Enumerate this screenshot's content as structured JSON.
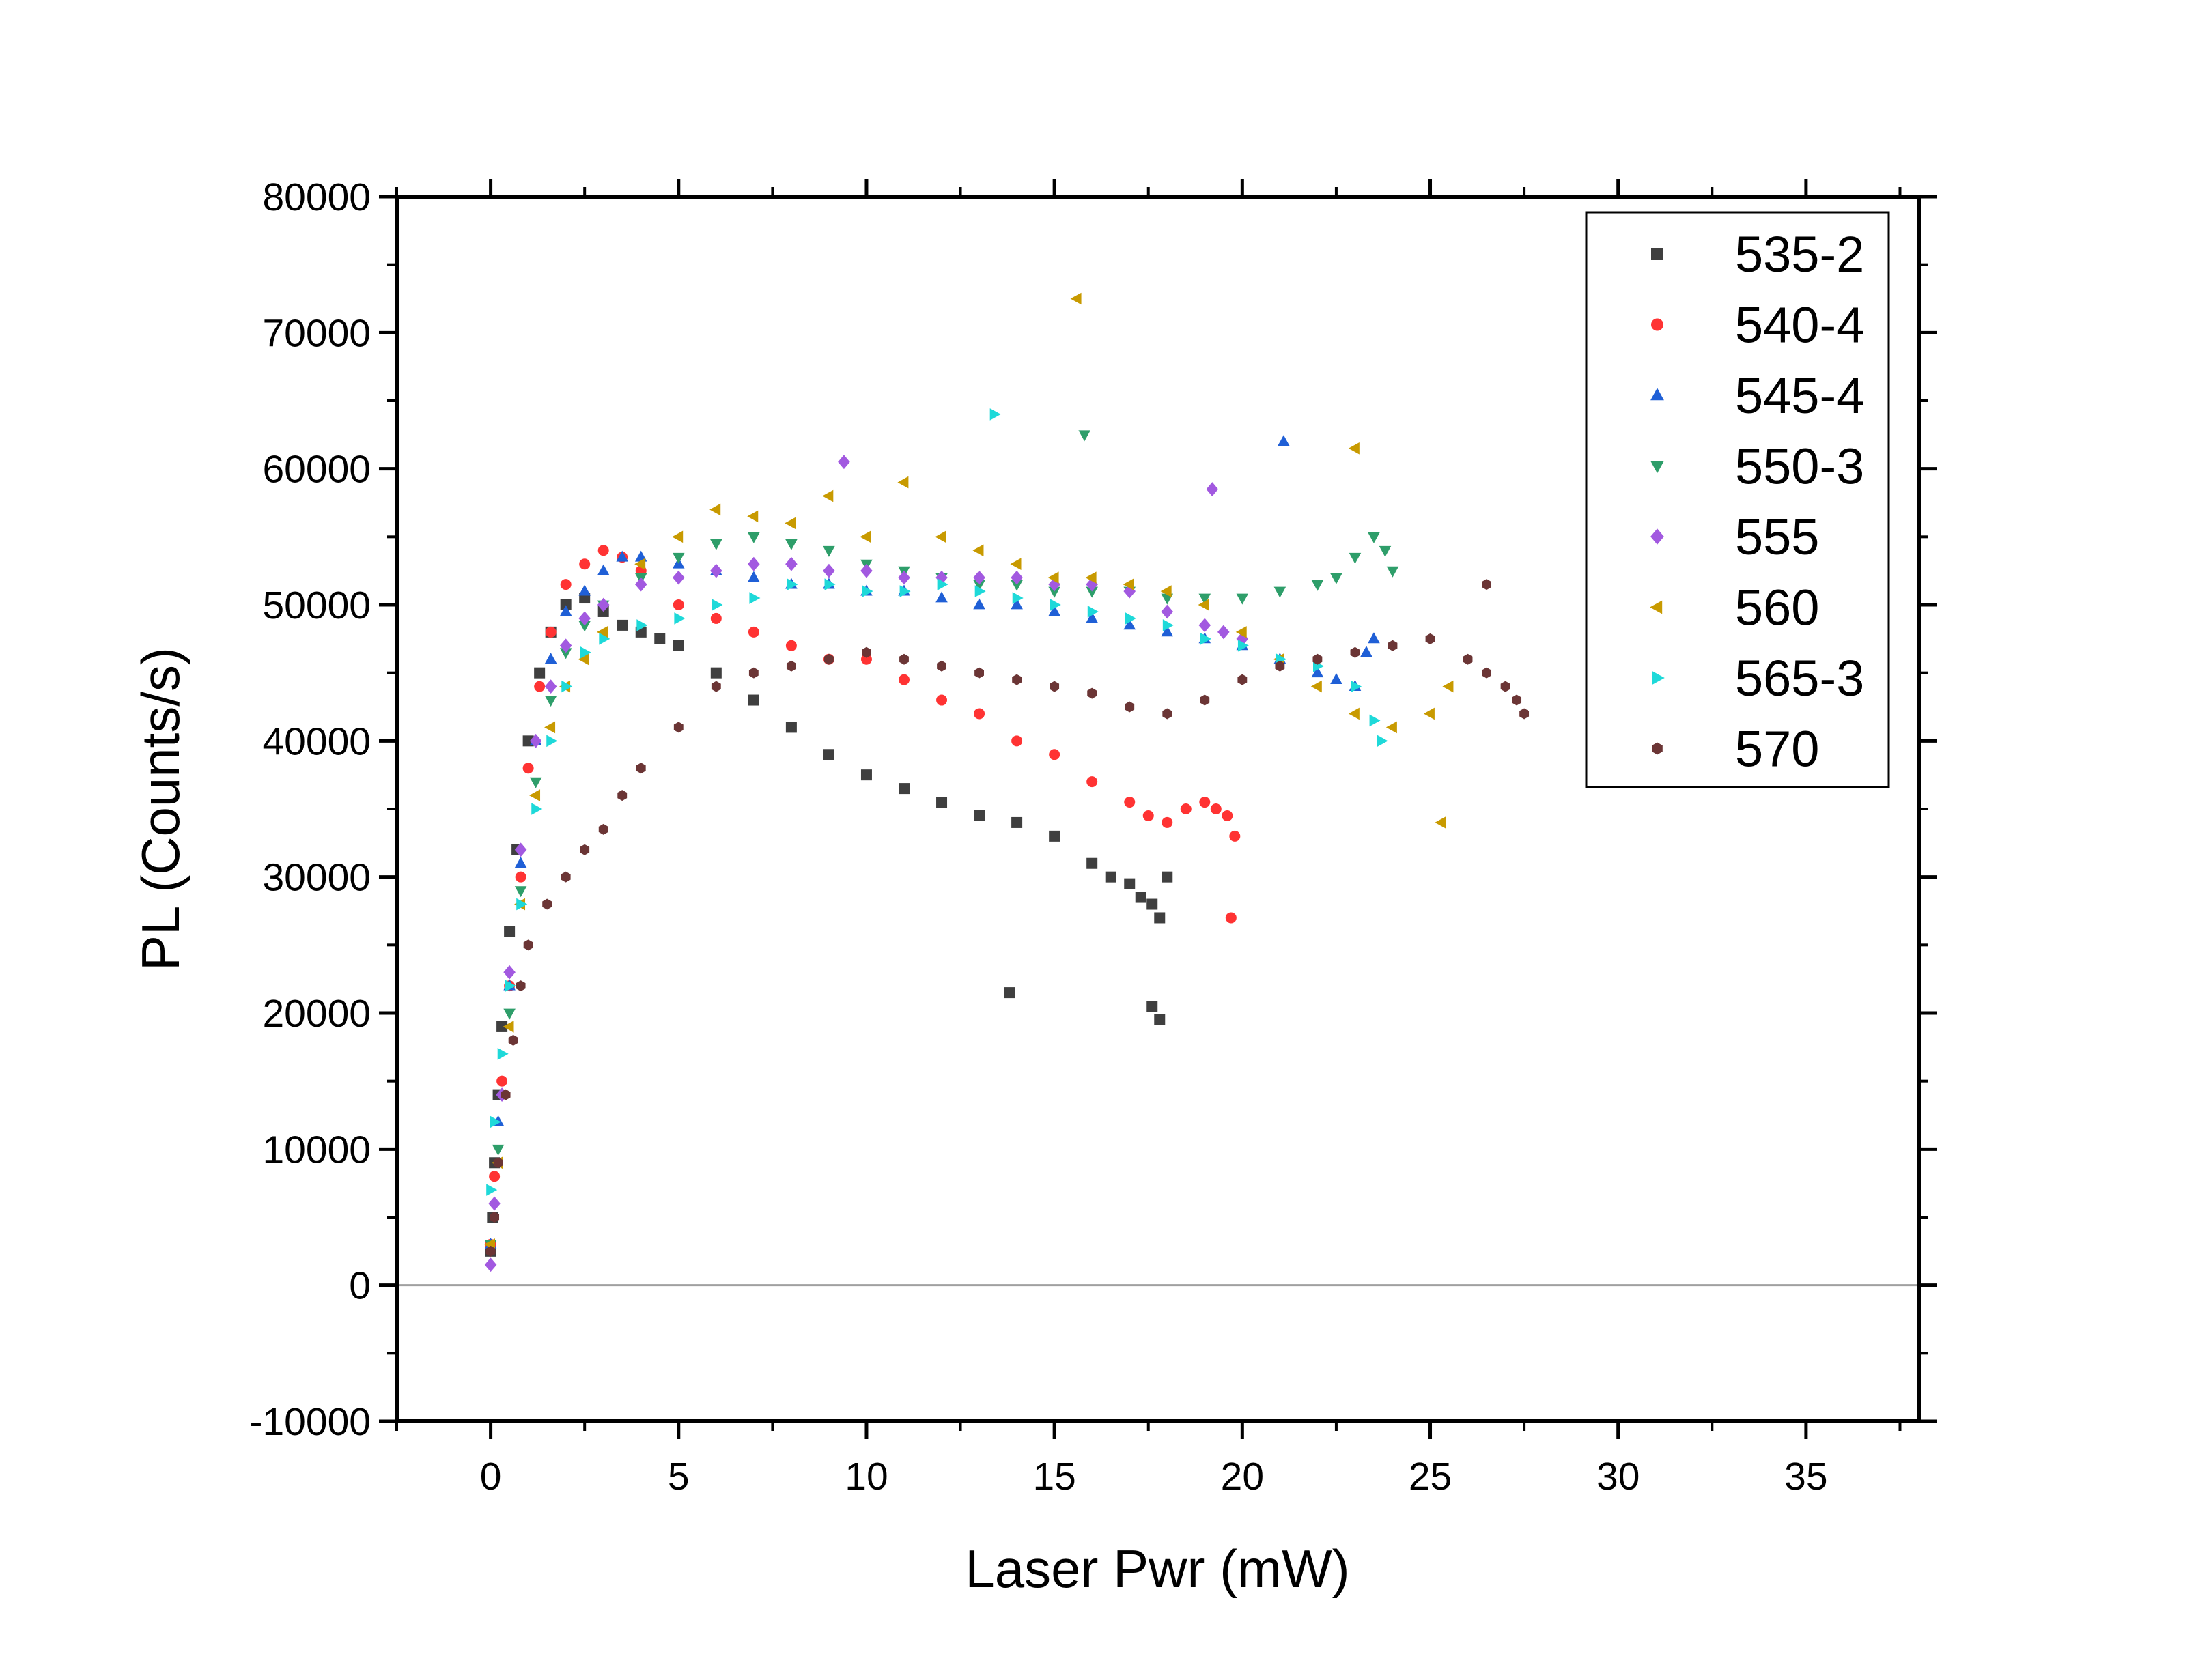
{
  "chart_data": {
    "type": "scatter",
    "title": "",
    "xlabel": "Laser Pwr (mW)",
    "ylabel": "PL (Counts/s)",
    "xlim": [
      -2.5,
      38.0
    ],
    "ylim": [
      -10000,
      80000
    ],
    "xticks": [
      0,
      5,
      10,
      15,
      20,
      25,
      30,
      35
    ],
    "xtick_labels": [
      "0",
      "5",
      "10",
      "15",
      "20",
      "25",
      "30",
      "35"
    ],
    "yticks": [
      -10000,
      0,
      10000,
      20000,
      30000,
      40000,
      50000,
      60000,
      70000,
      80000
    ],
    "ytick_labels": [
      "-10000",
      "0",
      "10000",
      "20000",
      "30000",
      "40000",
      "50000",
      "60000",
      "70000",
      "80000"
    ],
    "grid": false,
    "zero_line": true,
    "legend_position": "top-right",
    "series": [
      {
        "name": "535-2",
        "marker": "square",
        "color": "#3f3f3f",
        "x": [
          0.0,
          0.05,
          0.1,
          0.2,
          0.3,
          0.5,
          0.7,
          1.0,
          1.3,
          1.6,
          2.0,
          2.5,
          3.0,
          3.5,
          4.0,
          4.5,
          5.0,
          6.0,
          7.0,
          8.0,
          9.0,
          10.0,
          11.0,
          12.0,
          13.0,
          14.0,
          15.0,
          16.0,
          16.5,
          17.0,
          17.3,
          17.6,
          17.8,
          18.0,
          13.8,
          17.6,
          17.8
        ],
        "y": [
          2500,
          5000,
          9000,
          14000,
          19000,
          26000,
          32000,
          40000,
          45000,
          48000,
          50000,
          50500,
          49500,
          48500,
          48000,
          47500,
          47000,
          45000,
          43000,
          41000,
          39000,
          37500,
          36500,
          35500,
          34500,
          34000,
          33000,
          31000,
          30000,
          29500,
          28500,
          28000,
          27000,
          30000,
          21500,
          20500,
          19500
        ]
      },
      {
        "name": "540-4",
        "marker": "circle",
        "color": "#ff3333",
        "x": [
          0.0,
          0.1,
          0.3,
          0.5,
          0.8,
          1.0,
          1.3,
          1.6,
          2.0,
          2.5,
          3.0,
          3.5,
          4.0,
          5.0,
          6.0,
          7.0,
          8.0,
          9.0,
          10.0,
          11.0,
          12.0,
          13.0,
          14.0,
          15.0,
          16.0,
          17.0,
          17.5,
          18.0,
          18.5,
          19.0,
          19.3,
          19.6,
          19.8,
          19.7
        ],
        "y": [
          3000,
          8000,
          15000,
          22000,
          30000,
          38000,
          44000,
          48000,
          51500,
          53000,
          54000,
          53500,
          52500,
          50000,
          49000,
          48000,
          47000,
          46000,
          46000,
          44500,
          43000,
          42000,
          40000,
          39000,
          37000,
          35500,
          34500,
          34000,
          35000,
          35500,
          35000,
          34500,
          33000,
          27000
        ]
      },
      {
        "name": "545-4",
        "marker": "triangle-up",
        "color": "#1f5fd6",
        "x": [
          0.0,
          0.2,
          0.5,
          0.8,
          1.2,
          1.6,
          2.0,
          2.5,
          3.0,
          3.5,
          4.0,
          5.0,
          6.0,
          7.0,
          8.0,
          9.0,
          10.0,
          11.0,
          12.0,
          13.0,
          14.0,
          15.0,
          16.0,
          17.0,
          18.0,
          19.0,
          20.0,
          21.0,
          22.0,
          22.5,
          23.0,
          23.3,
          23.5,
          21.1
        ],
        "y": [
          3000,
          12000,
          22000,
          31000,
          40000,
          46000,
          49500,
          51000,
          52500,
          53500,
          53500,
          53000,
          52500,
          52000,
          51500,
          51500,
          51000,
          51000,
          50500,
          50000,
          50000,
          49500,
          49000,
          48500,
          48000,
          47500,
          47000,
          46000,
          45000,
          44500,
          44000,
          46500,
          47500,
          62000
        ]
      },
      {
        "name": "550-3",
        "marker": "triangle-down",
        "color": "#2e9e6a",
        "x": [
          0.0,
          0.2,
          0.5,
          0.8,
          1.2,
          1.6,
          2.0,
          2.5,
          3.0,
          4.0,
          5.0,
          6.0,
          7.0,
          8.0,
          9.0,
          10.0,
          11.0,
          12.0,
          13.0,
          14.0,
          15.0,
          16.0,
          17.0,
          18.0,
          19.0,
          20.0,
          21.0,
          22.0,
          22.5,
          23.0,
          23.5,
          23.8,
          24.0,
          15.8
        ],
        "y": [
          3000,
          10000,
          20000,
          29000,
          37000,
          43000,
          46500,
          48500,
          50000,
          52000,
          53500,
          54500,
          55000,
          54500,
          54000,
          53000,
          52500,
          52000,
          51500,
          51500,
          51000,
          51000,
          51000,
          50500,
          50500,
          50500,
          51000,
          51500,
          52000,
          53500,
          55000,
          54000,
          52500,
          62500
        ]
      },
      {
        "name": "555",
        "marker": "diamond",
        "color": "#a259e0",
        "x": [
          0.0,
          0.1,
          0.3,
          0.5,
          0.8,
          1.2,
          1.6,
          2.0,
          2.5,
          3.0,
          4.0,
          5.0,
          6.0,
          7.0,
          8.0,
          9.0,
          10.0,
          11.0,
          12.0,
          13.0,
          14.0,
          15.0,
          16.0,
          17.0,
          18.0,
          19.0,
          19.5,
          20.0,
          9.4,
          19.2
        ],
        "y": [
          1500,
          6000,
          14000,
          23000,
          32000,
          40000,
          44000,
          47000,
          49000,
          50000,
          51500,
          52000,
          52500,
          53000,
          53000,
          52500,
          52500,
          52000,
          52000,
          52000,
          52000,
          51500,
          51500,
          51000,
          49500,
          48500,
          48000,
          47500,
          60500,
          58500
        ]
      },
      {
        "name": "560",
        "marker": "triangle-left",
        "color": "#c89a00",
        "x": [
          0.0,
          0.2,
          0.5,
          0.8,
          1.2,
          1.6,
          2.0,
          2.5,
          3.0,
          4.0,
          5.0,
          6.0,
          7.0,
          8.0,
          9.0,
          10.0,
          11.0,
          12.0,
          13.0,
          14.0,
          15.0,
          16.0,
          17.0,
          18.0,
          19.0,
          20.0,
          21.0,
          22.0,
          23.0,
          24.0,
          25.0,
          25.5,
          15.6,
          23.0,
          25.3
        ],
        "y": [
          3000,
          9000,
          19000,
          28000,
          36000,
          41000,
          44000,
          46000,
          48000,
          53000,
          55000,
          57000,
          56500,
          56000,
          58000,
          55000,
          59000,
          55000,
          54000,
          53000,
          52000,
          52000,
          51500,
          51000,
          50000,
          48000,
          46000,
          44000,
          42000,
          41000,
          42000,
          44000,
          72500,
          61500,
          34000
        ]
      },
      {
        "name": "565-3",
        "marker": "triangle-right",
        "color": "#1ed9d9",
        "x": [
          0.0,
          0.1,
          0.3,
          0.5,
          0.8,
          1.2,
          1.6,
          2.0,
          2.5,
          3.0,
          4.0,
          5.0,
          6.0,
          7.0,
          8.0,
          9.0,
          10.0,
          11.0,
          12.0,
          13.0,
          14.0,
          15.0,
          16.0,
          17.0,
          18.0,
          19.0,
          20.0,
          21.0,
          22.0,
          23.0,
          23.5,
          23.7,
          13.4
        ],
        "y": [
          7000,
          12000,
          17000,
          22000,
          28000,
          35000,
          40000,
          44000,
          46500,
          47500,
          48500,
          49000,
          50000,
          50500,
          51500,
          51500,
          51000,
          51000,
          51500,
          51000,
          50500,
          50000,
          49500,
          49000,
          48500,
          47500,
          47000,
          46000,
          45500,
          44000,
          41500,
          40000,
          64000
        ]
      },
      {
        "name": "570",
        "marker": "hexagon",
        "color": "#6b3535",
        "x": [
          0.0,
          0.1,
          0.2,
          0.4,
          0.6,
          0.8,
          1.0,
          1.5,
          2.0,
          2.5,
          3.0,
          3.5,
          4.0,
          5.0,
          6.0,
          7.0,
          8.0,
          9.0,
          10.0,
          11.0,
          12.0,
          13.0,
          14.0,
          15.0,
          16.0,
          17.0,
          18.0,
          19.0,
          20.0,
          21.0,
          22.0,
          23.0,
          24.0,
          25.0,
          26.0,
          26.5,
          27.0,
          27.3,
          27.5,
          26.5
        ],
        "y": [
          2500,
          5000,
          9000,
          14000,
          18000,
          22000,
          25000,
          28000,
          30000,
          32000,
          33500,
          36000,
          38000,
          41000,
          44000,
          45000,
          45500,
          46000,
          46500,
          46000,
          45500,
          45000,
          44500,
          44000,
          43500,
          42500,
          42000,
          43000,
          44500,
          45500,
          46000,
          46500,
          47000,
          47500,
          46000,
          45000,
          44000,
          43000,
          42000,
          51500
        ]
      }
    ]
  }
}
